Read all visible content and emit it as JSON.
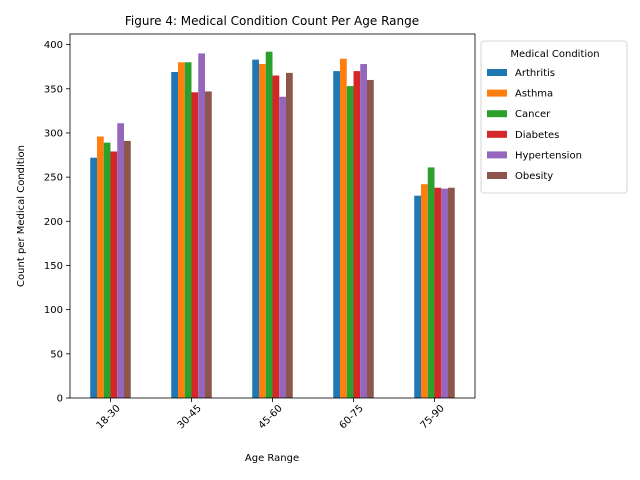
{
  "chart_data": {
    "type": "bar",
    "title": "Figure 4: Medical Condition Count Per Age Range",
    "xlabel": "Age Range",
    "ylabel": "Count per Medical Condition",
    "categories": [
      "18-30",
      "30-45",
      "45-60",
      "60-75",
      "75-90"
    ],
    "ylim": [
      0,
      412
    ],
    "yticks": [
      0,
      50,
      100,
      150,
      200,
      250,
      300,
      350,
      400
    ],
    "grid": false,
    "legend": {
      "title": "Medical Condition",
      "placement": "outside-upper-right"
    },
    "series": [
      {
        "name": "Arthritis",
        "color": "#1f77b4",
        "values": [
          272,
          369,
          383,
          370,
          229
        ]
      },
      {
        "name": "Asthma",
        "color": "#ff7f0e",
        "values": [
          296,
          380,
          378,
          384,
          242
        ]
      },
      {
        "name": "Cancer",
        "color": "#2ca02c",
        "values": [
          289,
          380,
          392,
          353,
          261
        ]
      },
      {
        "name": "Diabetes",
        "color": "#d62728",
        "values": [
          279,
          346,
          365,
          370,
          238
        ]
      },
      {
        "name": "Hypertension",
        "color": "#9467bd",
        "values": [
          311,
          390,
          341,
          378,
          237
        ]
      },
      {
        "name": "Obesity",
        "color": "#8c564b",
        "values": [
          291,
          347,
          368,
          360,
          238
        ]
      }
    ]
  }
}
